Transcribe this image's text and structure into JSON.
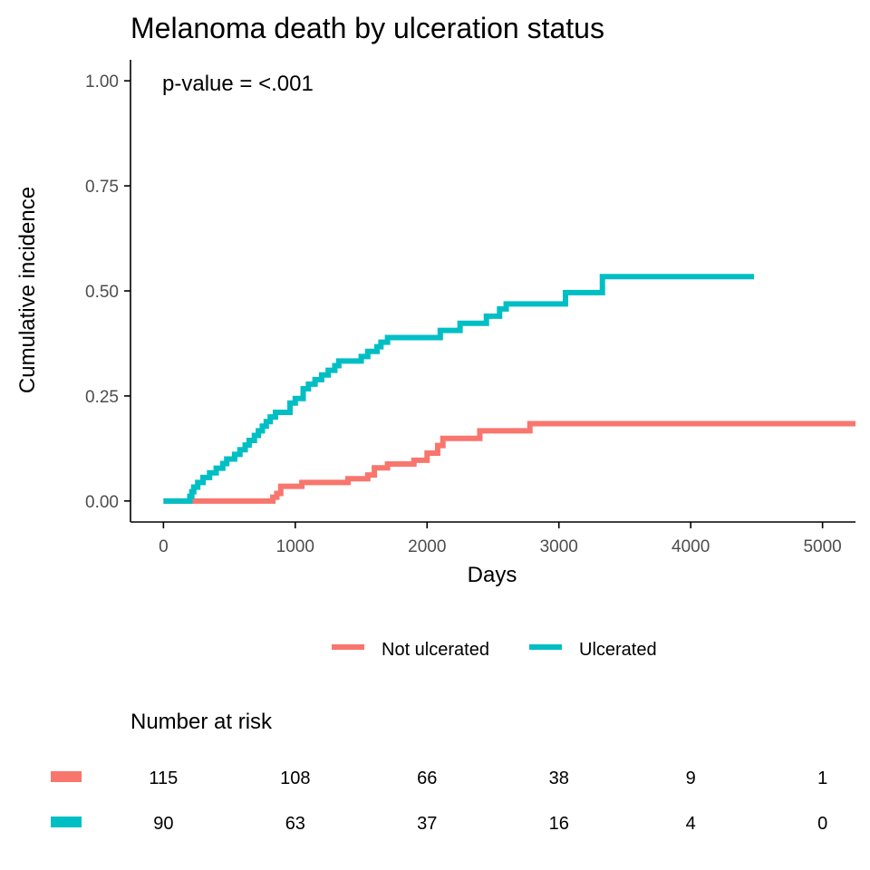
{
  "chart_data": {
    "type": "line",
    "title": "Melanoma death by ulceration status",
    "xlabel": "Days",
    "ylabel": "Cumulative incidence",
    "xlim": [
      -250,
      5250
    ],
    "ylim": [
      -0.05,
      1.05
    ],
    "xticks": [
      0,
      1000,
      2000,
      3000,
      4000,
      5000
    ],
    "yticks": [
      0,
      0.25,
      0.5,
      0.75,
      1.0
    ],
    "xtick_labels": [
      "0",
      "1000",
      "2000",
      "3000",
      "4000",
      "5000"
    ],
    "ytick_labels": [
      "0.00",
      "0.25",
      "0.50",
      "0.75",
      "1.00"
    ],
    "grid": false,
    "annotation": "p-value = <.001",
    "legend": {
      "position": "bottom",
      "entries": [
        "Not ulcerated",
        "Ulcerated"
      ]
    },
    "series": [
      {
        "name": "Not ulcerated",
        "color": "#F8766D",
        "step": true,
        "x": [
          0,
          800,
          830,
          860,
          890,
          1050,
          1400,
          1550,
          1600,
          1700,
          1900,
          2000,
          2080,
          2120,
          2400,
          2780,
          5300
        ],
        "y": [
          0,
          0,
          0.009,
          0.018,
          0.035,
          0.044,
          0.053,
          0.062,
          0.079,
          0.088,
          0.097,
          0.114,
          0.132,
          0.149,
          0.167,
          0.184,
          0.184
        ]
      },
      {
        "name": "Ulcerated",
        "color": "#00BFC4",
        "step": true,
        "x": [
          0,
          180,
          200,
          215,
          230,
          260,
          300,
          350,
          400,
          450,
          480,
          540,
          580,
          620,
          650,
          690,
          720,
          750,
          780,
          810,
          850,
          960,
          1000,
          1060,
          1100,
          1150,
          1200,
          1250,
          1300,
          1330,
          1500,
          1550,
          1620,
          1650,
          1700,
          1720,
          2100,
          2250,
          2450,
          2550,
          2600,
          3050,
          3330,
          4480
        ],
        "y": [
          0,
          0,
          0.011,
          0.022,
          0.033,
          0.044,
          0.056,
          0.067,
          0.078,
          0.089,
          0.1,
          0.111,
          0.122,
          0.133,
          0.144,
          0.156,
          0.167,
          0.178,
          0.189,
          0.2,
          0.211,
          0.233,
          0.244,
          0.267,
          0.278,
          0.289,
          0.3,
          0.311,
          0.322,
          0.333,
          0.344,
          0.356,
          0.367,
          0.378,
          0.389,
          0.389,
          0.406,
          0.423,
          0.44,
          0.457,
          0.469,
          0.496,
          0.534,
          0.534
        ]
      }
    ]
  },
  "risk_table": {
    "title": "Number at risk",
    "times": [
      0,
      1000,
      2000,
      3000,
      4000,
      5000
    ],
    "rows": [
      {
        "color": "#F8766D",
        "values": [
          "115",
          "108",
          "66",
          "38",
          "9",
          "1"
        ]
      },
      {
        "color": "#00BFC4",
        "values": [
          "90",
          "63",
          "37",
          "16",
          "4",
          "0"
        ]
      }
    ]
  }
}
